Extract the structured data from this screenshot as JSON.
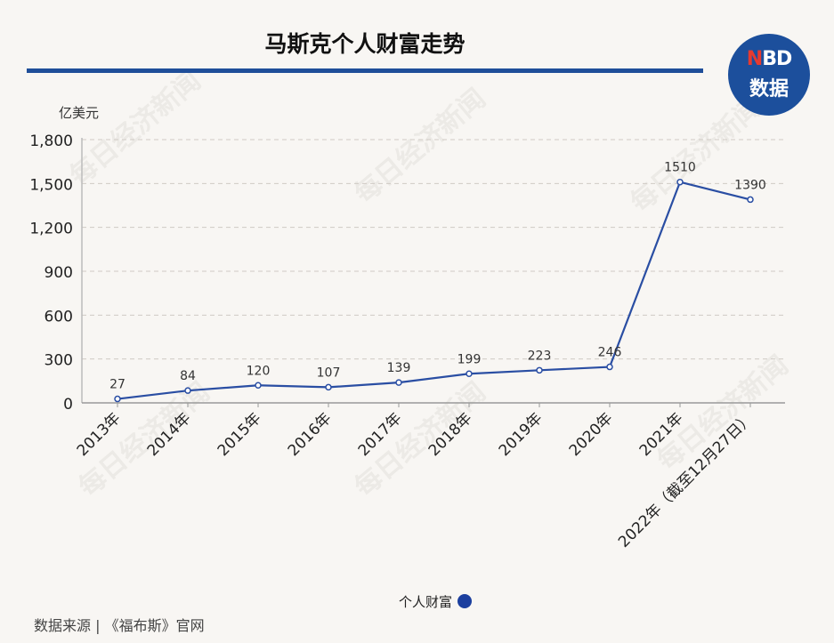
{
  "title": "马斯克个人财富走势",
  "logo": {
    "top_n": "N",
    "top_rest": "BD",
    "bottom": "数据"
  },
  "watermark": "每日经济新闻",
  "source": "数据来源 | 《福布斯》官网",
  "colors": {
    "line": "#2a4ea3",
    "accent": "#1f4e99",
    "legend_dot": "#1c3f9e"
  },
  "chart_data": {
    "type": "line",
    "ylabel": "亿美元",
    "ylim": [
      0,
      1800
    ],
    "yticks": [
      0,
      300,
      600,
      900,
      1200,
      1500,
      1800
    ],
    "ytick_labels": [
      "0",
      "300",
      "600",
      "900",
      "1,200",
      "1,500",
      "1,800"
    ],
    "grid": true,
    "legend_position": "bottom-center",
    "categories": [
      "2013年",
      "2014年",
      "2015年",
      "2016年",
      "2017年",
      "2018年",
      "2019年",
      "2020年",
      "2021年",
      "2022年（截至12月27日）"
    ],
    "series": [
      {
        "name": "个人财富",
        "values": [
          27,
          84,
          120,
          107,
          139,
          199,
          223,
          246,
          1510,
          1390
        ]
      }
    ]
  }
}
